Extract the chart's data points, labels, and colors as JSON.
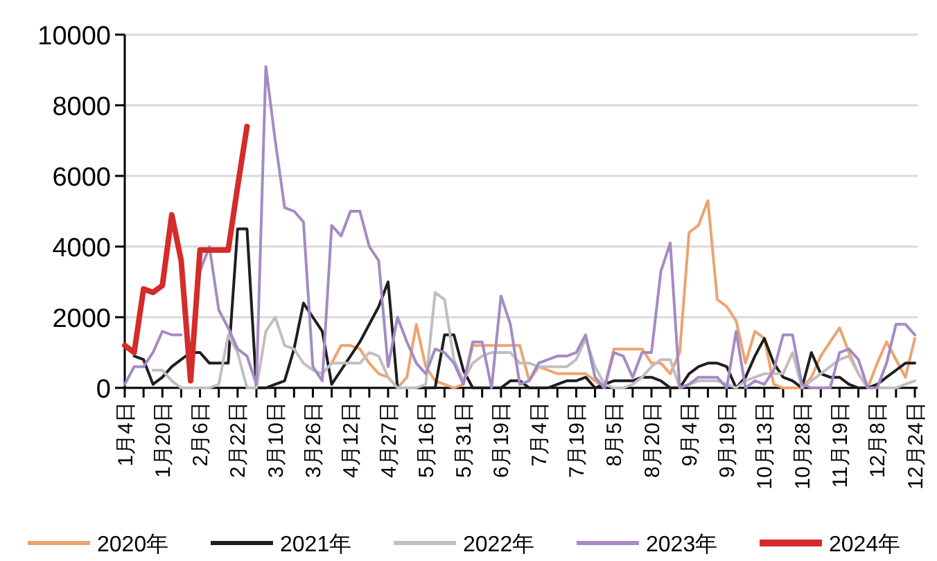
{
  "chart_data": {
    "type": "line",
    "categories": [
      "1月4日",
      null,
      null,
      null,
      "1月20日",
      null,
      null,
      null,
      "2月6日",
      null,
      null,
      null,
      "2月22日",
      null,
      null,
      null,
      "3月10日",
      null,
      null,
      null,
      "3月26日",
      null,
      null,
      null,
      "4月12日",
      null,
      null,
      null,
      "4月27日",
      null,
      null,
      null,
      "5月16日",
      null,
      null,
      null,
      "5月31日",
      null,
      null,
      null,
      "6月19日",
      null,
      null,
      null,
      "7月4日",
      null,
      null,
      null,
      "7月19日",
      null,
      null,
      null,
      "8月5日",
      null,
      null,
      null,
      "8月20日",
      null,
      null,
      null,
      "9月4日",
      null,
      null,
      null,
      "9月19日",
      null,
      null,
      null,
      "10月13日",
      null,
      null,
      null,
      "10月28日",
      null,
      null,
      null,
      "11月19日",
      null,
      null,
      null,
      "12月8日",
      null,
      null,
      null,
      "12月24日"
    ],
    "ylim": [
      0,
      10000
    ],
    "yticks": [
      0,
      2000,
      4000,
      6000,
      8000,
      10000
    ],
    "grid": "y",
    "legend": "bottom",
    "line_style": "solid",
    "series": [
      {
        "name": "2020年",
        "color": "#eda46f",
        "values": [
          null,
          null,
          null,
          null,
          null,
          null,
          null,
          null,
          null,
          null,
          null,
          null,
          null,
          null,
          null,
          null,
          null,
          null,
          null,
          null,
          null,
          null,
          700,
          1200,
          1200,
          1100,
          700,
          400,
          300,
          0,
          300,
          1800,
          600,
          200,
          100,
          0,
          100,
          1200,
          1200,
          1200,
          1200,
          1200,
          1200,
          200,
          600,
          500,
          400,
          400,
          400,
          400,
          200,
          0,
          1100,
          1100,
          1100,
          1100,
          700,
          700,
          400,
          1000,
          4400,
          4600,
          5300,
          2500,
          2300,
          1900,
          700,
          1600,
          1400,
          100,
          0,
          0,
          0,
          300,
          900,
          1300,
          1700,
          1000,
          400,
          0,
          700,
          1300,
          800,
          300,
          1400
        ]
      },
      {
        "name": "2021年",
        "color": "#1e1e1e",
        "values": [
          null,
          900,
          800,
          100,
          300,
          600,
          800,
          1000,
          1000,
          700,
          700,
          700,
          4500,
          4500,
          0,
          0,
          100,
          200,
          1100,
          2400,
          2000,
          1600,
          100,
          500,
          900,
          1300,
          1800,
          2300,
          3000,
          0,
          0,
          0,
          0,
          0,
          1500,
          1500,
          500,
          0,
          0,
          0,
          0,
          200,
          200,
          0,
          0,
          0,
          100,
          200,
          200,
          300,
          0,
          100,
          200,
          200,
          200,
          300,
          300,
          200,
          0,
          0,
          400,
          600,
          700,
          700,
          600,
          0,
          300,
          900,
          1400,
          700,
          300,
          200,
          0,
          1000,
          400,
          300,
          300,
          100,
          0,
          0,
          100,
          300,
          500,
          700,
          700
        ]
      },
      {
        "name": "2022年",
        "color": "#bfbfbf",
        "values": [
          null,
          null,
          null,
          500,
          500,
          200,
          0,
          0,
          0,
          0,
          100,
          1500,
          1000,
          0,
          0,
          1600,
          2000,
          1200,
          1100,
          700,
          500,
          400,
          700,
          700,
          700,
          700,
          1000,
          900,
          300,
          0,
          0,
          0,
          100,
          2700,
          2500,
          800,
          200,
          700,
          900,
          1000,
          1000,
          1000,
          700,
          700,
          600,
          600,
          600,
          600,
          800,
          1400,
          600,
          100,
          0,
          0,
          100,
          300,
          600,
          800,
          800,
          0,
          100,
          200,
          200,
          200,
          100,
          0,
          200,
          300,
          400,
          400,
          400,
          1000,
          0,
          200,
          400,
          600,
          800,
          900,
          400,
          0,
          0,
          0,
          0,
          100,
          200
        ]
      },
      {
        "name": "2023年",
        "color": "#a48bc4",
        "values": [
          100,
          600,
          600,
          1000,
          1600,
          1500,
          1500,
          null,
          3300,
          4000,
          2200,
          1700,
          1100,
          900,
          100,
          9100,
          7000,
          5100,
          5000,
          4700,
          600,
          200,
          4600,
          4300,
          5000,
          5000,
          4000,
          3600,
          600,
          2000,
          1300,
          700,
          400,
          1100,
          1000,
          700,
          100,
          1300,
          1300,
          0,
          2600,
          1800,
          100,
          200,
          700,
          800,
          900,
          900,
          1000,
          1500,
          300,
          0,
          1000,
          900,
          300,
          1000,
          1000,
          3300,
          4100,
          0,
          100,
          300,
          300,
          300,
          0,
          1600,
          0,
          200,
          100,
          500,
          1500,
          1500,
          100,
          0,
          0,
          0,
          1000,
          1100,
          800,
          0,
          0,
          700,
          1800,
          1800,
          1500
        ]
      },
      {
        "name": "2024年",
        "color": "#d42b2b",
        "values": [
          1200,
          1000,
          2800,
          2700,
          2900,
          4900,
          3600,
          200,
          3900,
          3900,
          3900,
          3900,
          5700,
          7400,
          null,
          null,
          null,
          null,
          null,
          null,
          null,
          null,
          null,
          null,
          null,
          null,
          null,
          null,
          null,
          null,
          null,
          null,
          null,
          null,
          null,
          null,
          null,
          null,
          null,
          null,
          null,
          null,
          null,
          null,
          null,
          null,
          null,
          null,
          null,
          null,
          null,
          null,
          null,
          null,
          null,
          null,
          null,
          null,
          null,
          null,
          null,
          null,
          null,
          null,
          null,
          null,
          null,
          null,
          null,
          null,
          null,
          null,
          null,
          null,
          null,
          null,
          null,
          null,
          null,
          null,
          null,
          null,
          null,
          null,
          null
        ]
      }
    ]
  }
}
